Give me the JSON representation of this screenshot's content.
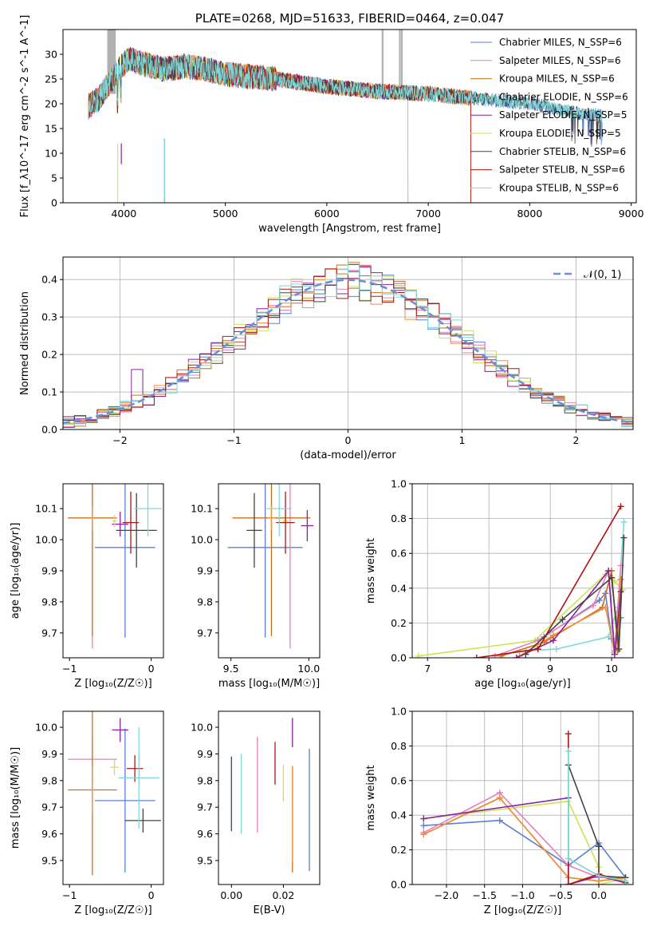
{
  "colors": {
    "chabrier_miles": "#5b7fd6",
    "salpeter_miles": "#e57fbf",
    "kroupa_miles": "#cc6f1a",
    "chabrier_elodie": "#f08e3a",
    "salpeter_elodie": "#8b1f9e",
    "kroupa_elodie": "#c7e650",
    "chabrier_stelib": "#444444",
    "salpeter_stelib": "#b01414",
    "kroupa_stelib": "#7fd8d8",
    "grid": "#b0b0b0",
    "spike": "#b0b0b0",
    "normal": "#6b8fdc"
  },
  "chart_data": [
    {
      "type": "line",
      "title": "PLATE=0268, MJD=51633, FIBERID=0464, z=0.047",
      "xlabel": "wavelength [Angstrom, rest frame]",
      "ylabel": "Flux [f_λ10^-17 erg cm^-2 s^-1 A^-1]",
      "xlim": [
        3400,
        9050
      ],
      "ylim": [
        0,
        35
      ],
      "xticks": [
        "4000",
        "5000",
        "6000",
        "7000",
        "8000",
        "9000"
      ],
      "yticks": [
        "0",
        "5",
        "10",
        "15",
        "20",
        "25",
        "30"
      ],
      "legend_position": "top-right",
      "series": [
        {
          "name": "Chabrier MILES, N_SSP=6",
          "color_key": "chabrier_miles",
          "cutoff": null
        },
        {
          "name": "Salpeter MILES, N_SSP=6",
          "color_key": "salpeter_miles",
          "cutoff": 7420
        },
        {
          "name": "Kroupa MILES, N_SSP=6",
          "color_key": "kroupa_miles",
          "cutoff": 7420
        },
        {
          "name": "Chabrier ELODIE, N_SSP=6",
          "color_key": "chabrier_elodie",
          "cutoff": 7420
        },
        {
          "name": "Salpeter ELODIE, N_SSP=5",
          "color_key": "salpeter_elodie",
          "cutoff": 6800
        },
        {
          "name": "Kroupa ELODIE, N_SSP=5",
          "color_key": "kroupa_elodie",
          "cutoff": 6800
        },
        {
          "name": "Chabrier STELIB, N_SSP=6",
          "color_key": "chabrier_stelib",
          "cutoff": null
        },
        {
          "name": "Salpeter STELIB, N_SSP=6",
          "color_key": "salpeter_stelib",
          "cutoff": 7420
        },
        {
          "name": "Kroupa STELIB, N_SSP=6",
          "color_key": "kroupa_stelib",
          "cutoff": null
        }
      ],
      "continuum": [
        [
          3650,
          19.5
        ],
        [
          3750,
          21
        ],
        [
          3850,
          24
        ],
        [
          3950,
          27
        ],
        [
          4050,
          29
        ],
        [
          4200,
          28
        ],
        [
          4400,
          27
        ],
        [
          4600,
          27.5
        ],
        [
          4800,
          27
        ],
        [
          5000,
          26
        ],
        [
          5500,
          25
        ],
        [
          6000,
          23.5
        ],
        [
          6500,
          22.5
        ],
        [
          7000,
          22
        ],
        [
          7500,
          21
        ],
        [
          8000,
          20
        ],
        [
          8500,
          18
        ],
        [
          8700,
          17.5
        ]
      ]
    },
    {
      "type": "line",
      "xlabel": "(data-model)/error",
      "ylabel": "Normed distribution",
      "xlim": [
        -2.5,
        2.5
      ],
      "ylim": [
        0,
        0.46
      ],
      "xticks": [
        "−2",
        "−1",
        "0",
        "1",
        "2"
      ],
      "yticks": [
        "0.0",
        "0.1",
        "0.2",
        "0.3",
        "0.4"
      ],
      "bin_width": 0.1,
      "legend_position": "top-right",
      "legend": "𝒩(0, 1)",
      "grid": true
    },
    {
      "type": "scatter",
      "xlabel": "Z [log₁₀(Z/Z☉)]",
      "ylabel": "age [log₁₀(age/yr)]",
      "xlim": [
        -1.08,
        0.15
      ],
      "ylim": [
        9.62,
        10.18
      ],
      "xticks": [
        "−1",
        "0"
      ],
      "yticks": [
        "9.7",
        "9.8",
        "9.9",
        "10.0",
        "10.1"
      ],
      "points": [
        {
          "color_key": "chabrier_miles",
          "x": -0.32,
          "y": 9.975,
          "ex": 0.37,
          "ey": 0.29
        },
        {
          "color_key": "salpeter_miles",
          "x": -0.72,
          "y": 10.07,
          "ex": 0.02,
          "ey": 0.42
        },
        {
          "color_key": "kroupa_miles",
          "x": -0.72,
          "y": 10.07,
          "ex": 0.3,
          "ey": 0.38
        },
        {
          "color_key": "chabrier_elodie",
          "x": -0.72,
          "y": 10.07,
          "ex": 0.02,
          "ey": 0.04
        },
        {
          "color_key": "salpeter_elodie",
          "x": -0.38,
          "y": 10.05,
          "ex": 0.1,
          "ey": 0.04
        },
        {
          "color_key": "kroupa_elodie",
          "x": -0.45,
          "y": 10.06,
          "ex": 0.03,
          "ey": 0.02
        },
        {
          "color_key": "chabrier_stelib",
          "x": -0.18,
          "y": 10.03,
          "ex": 0.25,
          "ey": 0.12
        },
        {
          "color_key": "salpeter_stelib",
          "x": -0.25,
          "y": 10.055,
          "ex": 0.1,
          "ey": 0.1
        },
        {
          "color_key": "kroupa_stelib",
          "x": -0.04,
          "y": 10.1,
          "ex": 0.17,
          "ey": 0.09
        }
      ]
    },
    {
      "type": "scatter",
      "xlabel": "mass [log₁₀(M/M☉)]",
      "xlim": [
        9.42,
        10.07
      ],
      "ylim": [
        9.62,
        10.18
      ],
      "xticks": [
        "9.5",
        "10.0"
      ],
      "yticks": [
        "9.7",
        "9.8",
        "9.9",
        "10.0",
        "10.1"
      ],
      "points": [
        {
          "color_key": "chabrier_miles",
          "x": 9.72,
          "y": 9.975,
          "ex": 0.24,
          "ey": 0.29
        },
        {
          "color_key": "salpeter_miles",
          "x": 9.88,
          "y": 10.07,
          "ex": 0.02,
          "ey": 0.42
        },
        {
          "color_key": "kroupa_miles",
          "x": 9.76,
          "y": 10.07,
          "ex": 0.25,
          "ey": 0.38
        },
        {
          "color_key": "chabrier_elodie",
          "x": 9.76,
          "y": 10.07,
          "ex": 0.02,
          "ey": 0.04
        },
        {
          "color_key": "salpeter_elodie",
          "x": 9.99,
          "y": 10.045,
          "ex": 0.04,
          "ey": 0.05
        },
        {
          "color_key": "kroupa_elodie",
          "x": 9.85,
          "y": 10.06,
          "ex": 0.02,
          "ey": 0.02
        },
        {
          "color_key": "chabrier_stelib",
          "x": 9.65,
          "y": 10.03,
          "ex": 0.05,
          "ey": 0.12
        },
        {
          "color_key": "salpeter_stelib",
          "x": 9.85,
          "y": 10.055,
          "ex": 0.06,
          "ey": 0.1
        },
        {
          "color_key": "kroupa_stelib",
          "x": 9.81,
          "y": 10.1,
          "ex": 0.08,
          "ey": 0.09
        }
      ]
    },
    {
      "type": "line",
      "xlabel": "age [log₁₀(age/yr)]",
      "ylabel": "mass weight",
      "xlim": [
        6.75,
        10.35
      ],
      "ylim": [
        0,
        1
      ],
      "xticks": [
        "7",
        "8",
        "9",
        "10"
      ],
      "yticks": [
        "0.0",
        "0.2",
        "0.4",
        "0.6",
        "0.8",
        "1.0"
      ],
      "grid": true,
      "series": [
        {
          "color_key": "kroupa_elodie",
          "points": [
            [
              6.85,
              0.01
            ],
            [
              8.75,
              0.1
            ],
            [
              9.9,
              0.48
            ],
            [
              10.05,
              0.44
            ],
            [
              10.18,
              0.39
            ]
          ]
        },
        {
          "color_key": "kroupa_stelib",
          "points": [
            [
              8.6,
              0.04
            ],
            [
              9.1,
              0.05
            ],
            [
              9.95,
              0.12
            ],
            [
              10.1,
              0.29
            ],
            [
              10.2,
              0.78
            ]
          ]
        },
        {
          "color_key": "chabrier_miles",
          "points": [
            [
              8.9,
              0.12
            ],
            [
              9.8,
              0.33
            ],
            [
              9.9,
              0.37
            ],
            [
              10.0,
              0.11
            ],
            [
              10.1,
              0.04
            ],
            [
              10.15,
              0.23
            ]
          ]
        },
        {
          "color_key": "salpeter_miles",
          "points": [
            [
              8.1,
              0.01
            ],
            [
              8.8,
              0.1
            ],
            [
              9.7,
              0.3
            ],
            [
              9.95,
              0.5
            ],
            [
              10.05,
              0.04
            ],
            [
              10.15,
              0.53
            ]
          ]
        },
        {
          "color_key": "kroupa_miles",
          "points": [
            [
              8.2,
              0.01
            ],
            [
              8.9,
              0.09
            ],
            [
              9.85,
              0.29
            ],
            [
              10.0,
              0.5
            ],
            [
              10.1,
              0.04
            ],
            [
              10.15,
              0.45
            ]
          ]
        },
        {
          "color_key": "chabrier_elodie",
          "points": [
            [
              8.5,
              0.01
            ],
            [
              9.05,
              0.13
            ],
            [
              9.9,
              0.29
            ],
            [
              10.05,
              0.03
            ],
            [
              10.15,
              0.45
            ]
          ]
        },
        {
          "color_key": "salpeter_elodie",
          "points": [
            [
              8.45,
              0.0
            ],
            [
              9.05,
              0.1
            ],
            [
              9.95,
              0.5
            ],
            [
              10.05,
              0.02
            ],
            [
              10.15,
              0.38
            ]
          ]
        },
        {
          "color_key": "chabrier_stelib",
          "points": [
            [
              8.6,
              0.02
            ],
            [
              9.2,
              0.22
            ],
            [
              10.0,
              0.46
            ],
            [
              10.12,
              0.05
            ],
            [
              10.2,
              0.69
            ]
          ]
        },
        {
          "color_key": "salpeter_stelib",
          "points": [
            [
              7.8,
              0.0
            ],
            [
              8.8,
              0.05
            ],
            [
              10.15,
              0.87
            ]
          ]
        }
      ]
    },
    {
      "type": "scatter",
      "xlabel": "Z [log₁₀(Z/Z☉)]",
      "ylabel": "mass [log₁₀(M/M☉)]",
      "xlim": [
        -1.08,
        0.15
      ],
      "ylim": [
        9.41,
        10.06
      ],
      "xticks": [
        "−1",
        "0"
      ],
      "yticks": [
        "9.5",
        "9.6",
        "9.7",
        "9.8",
        "9.9",
        "10.0"
      ],
      "points": [
        {
          "color_key": "chabrier_miles",
          "x": -0.32,
          "y": 9.725,
          "ex": 0.37,
          "ey": 0.27
        },
        {
          "color_key": "salpeter_miles",
          "x": -0.72,
          "y": 9.88,
          "ex": 0.3,
          "ey": 0.09
        },
        {
          "color_key": "kroupa_miles",
          "x": -0.72,
          "y": 9.765,
          "ex": 0.3,
          "ey": 0.32
        },
        {
          "color_key": "chabrier_elodie",
          "x": -0.72,
          "y": 9.765,
          "ex": 0.02,
          "ey": 0.09
        },
        {
          "color_key": "salpeter_elodie",
          "x": -0.38,
          "y": 9.99,
          "ex": 0.1,
          "ey": 0.045
        },
        {
          "color_key": "kroupa_elodie",
          "x": -0.45,
          "y": 9.85,
          "ex": 0.05,
          "ey": 0.03
        },
        {
          "color_key": "chabrier_stelib",
          "x": -0.1,
          "y": 9.65,
          "ex": 0.22,
          "ey": 0.045
        },
        {
          "color_key": "salpeter_stelib",
          "x": -0.2,
          "y": 9.845,
          "ex": 0.1,
          "ey": 0.05
        },
        {
          "color_key": "kroupa_stelib",
          "x": -0.15,
          "y": 9.81,
          "ex": 0.25,
          "ey": 0.19
        }
      ]
    },
    {
      "type": "scatter",
      "xlabel": "E(B-V)",
      "xlim": [
        -0.005,
        0.034
      ],
      "ylim": [
        9.41,
        10.06
      ],
      "xticks": [
        "0.00",
        "0.02"
      ],
      "yticks": [
        "9.5",
        "9.6",
        "9.7",
        "9.8",
        "9.9",
        "10.0"
      ],
      "points": [
        {
          "color_key": "chabrier_miles",
          "x": 0.03,
          "y": 9.69,
          "ey": 0.23
        },
        {
          "color_key": "salpeter_miles",
          "x": 0.01,
          "y": 9.785,
          "ey": 0.18
        },
        {
          "color_key": "kroupa_miles",
          "x": 0.0235,
          "y": 9.655,
          "ey": 0.2
        },
        {
          "color_key": "chabrier_elodie",
          "x": 0.0235,
          "y": 9.675,
          "ey": 0.18
        },
        {
          "color_key": "salpeter_elodie",
          "x": 0.0235,
          "y": 9.98,
          "ey": 0.055
        },
        {
          "color_key": "kroupa_elodie",
          "x": 0.02,
          "y": 9.79,
          "ey": 0.07
        },
        {
          "color_key": "chabrier_stelib",
          "x": 0.0,
          "y": 9.75,
          "ey": 0.14
        },
        {
          "color_key": "salpeter_stelib",
          "x": 0.0168,
          "y": 9.865,
          "ey": 0.08
        },
        {
          "color_key": "kroupa_stelib",
          "x": 0.0038,
          "y": 9.75,
          "ey": 0.15
        }
      ]
    },
    {
      "type": "line",
      "xlabel": "Z [log₁₀(Z/Z☉)]",
      "ylabel": "mass weight",
      "xlim": [
        -2.45,
        0.45
      ],
      "ylim": [
        0,
        1
      ],
      "xticks": [
        "−2.0",
        "−1.5",
        "−1.0",
        "−0.5",
        "0.0"
      ],
      "yticks": [
        "0.0",
        "0.2",
        "0.4",
        "0.6",
        "0.8",
        "1.0"
      ],
      "grid": true,
      "series": [
        {
          "color_key": "kroupa_elodie",
          "points": [
            [
              -2.3,
              0.38
            ],
            [
              -0.4,
              0.48
            ],
            [
              0.0,
              0.1
            ],
            [
              0.0,
              0.0
            ],
            [
              0.3,
              0.03
            ]
          ]
        },
        {
          "color_key": "chabrier_miles",
          "points": [
            [
              -2.3,
              0.34
            ],
            [
              -1.3,
              0.37
            ],
            [
              -0.4,
              0.11
            ],
            [
              0.0,
              0.24
            ],
            [
              0.35,
              0.04
            ]
          ]
        },
        {
          "color_key": "salpeter_miles",
          "points": [
            [
              -2.3,
              0.3
            ],
            [
              -1.3,
              0.53
            ],
            [
              -0.4,
              0.11
            ],
            [
              0.0,
              0.04
            ],
            [
              0.35,
              0.04
            ]
          ]
        },
        {
          "color_key": "kroupa_miles",
          "points": [
            [
              -2.3,
              0.29
            ],
            [
              -1.3,
              0.5
            ],
            [
              -0.4,
              0.04
            ],
            [
              0.0,
              0.02
            ],
            [
              0.35,
              0.04
            ]
          ]
        },
        {
          "color_key": "chabrier_elodie",
          "points": [
            [
              -2.3,
              0.29
            ],
            [
              -1.3,
              0.5
            ],
            [
              -0.4,
              0.04
            ],
            [
              0.0,
              0.02
            ],
            [
              0.35,
              0.04
            ]
          ]
        },
        {
          "color_key": "salpeter_elodie",
          "points": [
            [
              -2.3,
              0.38
            ],
            [
              -0.4,
              0.5
            ],
            [
              -0.4,
              0.0
            ],
            [
              0.0,
              0.05
            ],
            [
              0.35,
              0.01
            ]
          ]
        },
        {
          "color_key": "chabrier_stelib",
          "points": [
            [
              -0.4,
              0.69
            ],
            [
              0.0,
              0.22
            ],
            [
              0.0,
              0.05
            ],
            [
              0.35,
              0.04
            ]
          ]
        },
        {
          "color_key": "salpeter_stelib",
          "points": [
            [
              -0.4,
              0.87
            ],
            [
              -0.4,
              0.0
            ],
            [
              0.0,
              0.06
            ],
            [
              0.35,
              0.01
            ]
          ]
        },
        {
          "color_key": "kroupa_stelib",
          "points": [
            [
              -0.4,
              0.77
            ],
            [
              -0.4,
              0.15
            ],
            [
              0.0,
              0.05
            ],
            [
              0.35,
              0.02
            ]
          ]
        }
      ]
    }
  ]
}
